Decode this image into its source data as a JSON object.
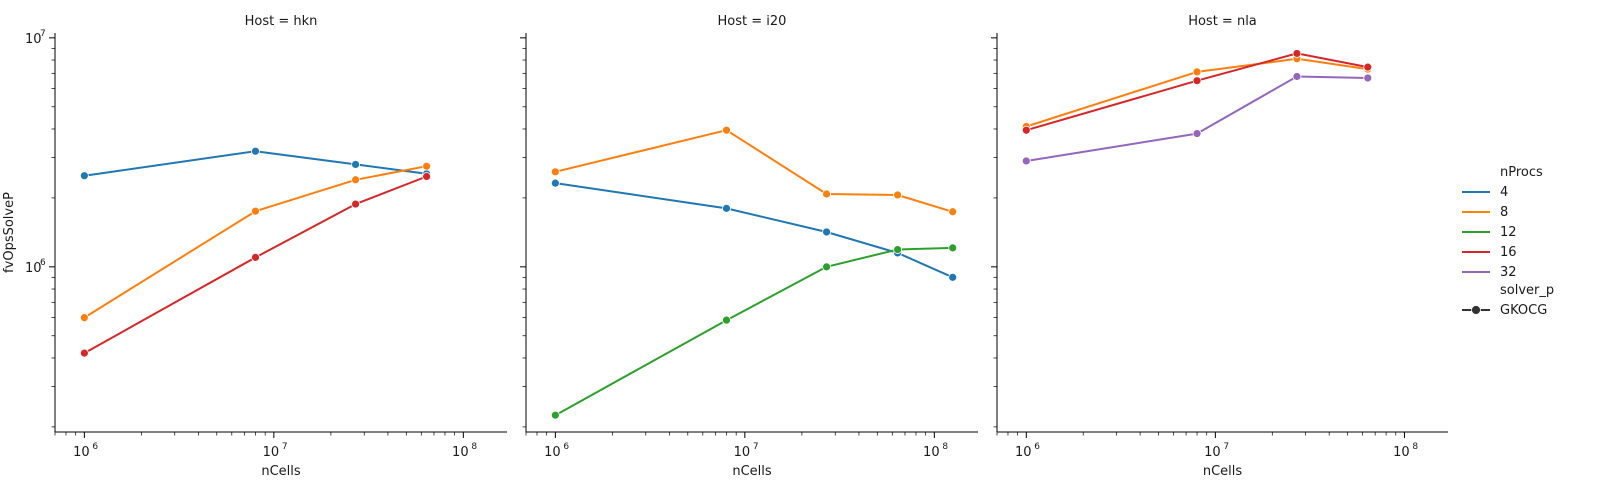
{
  "chart_data": {
    "type": "line",
    "x_scale": "log",
    "y_scale": "log",
    "xlabel": "nCells",
    "ylabel": "fvOpsSolveP",
    "xlim": [
      700000,
      170000000
    ],
    "ylim": [
      190000,
      10500000
    ],
    "x_ticks": [
      {
        "value": 1000000,
        "base": "10",
        "exp": "6"
      },
      {
        "value": 10000000,
        "base": "10",
        "exp": "7"
      },
      {
        "value": 100000000,
        "base": "10",
        "exp": "8"
      }
    ],
    "y_ticks": [
      {
        "value": 1000000,
        "base": "10",
        "exp": "6"
      },
      {
        "value": 10000000,
        "base": "10",
        "exp": "7"
      }
    ],
    "grid": false,
    "legend": {
      "position": "right",
      "hue_title": "nProcs",
      "style_title": "solver_p",
      "style_items": [
        "GKOCG"
      ],
      "entries": [
        {
          "label": "4",
          "color": "#1f77b4"
        },
        {
          "label": "8",
          "color": "#ff7f0e"
        },
        {
          "label": "12",
          "color": "#2ca02c"
        },
        {
          "label": "16",
          "color": "#d62728"
        },
        {
          "label": "32",
          "color": "#9467bd"
        }
      ]
    },
    "panels": [
      {
        "title": "Host = hkn",
        "series": [
          {
            "name": "4",
            "color": "#1f77b4",
            "points": [
              [
                1000000,
                2500000
              ],
              [
                8000000,
                3200000
              ],
              [
                27000000,
                2800000
              ],
              [
                64000000,
                2550000
              ]
            ]
          },
          {
            "name": "8",
            "color": "#ff7f0e",
            "points": [
              [
                1000000,
                600000
              ],
              [
                8000000,
                1750000
              ],
              [
                27000000,
                2400000
              ],
              [
                64000000,
                2750000
              ]
            ]
          },
          {
            "name": "16",
            "color": "#d62728",
            "points": [
              [
                1000000,
                420000
              ],
              [
                8000000,
                1100000
              ],
              [
                27000000,
                1880000
              ],
              [
                64000000,
                2480000
              ]
            ]
          }
        ]
      },
      {
        "title": "Host = i20",
        "series": [
          {
            "name": "4",
            "color": "#1f77b4",
            "points": [
              [
                1000000,
                2320000
              ],
              [
                8000000,
                1800000
              ],
              [
                27000000,
                1420000
              ],
              [
                64000000,
                1150000
              ],
              [
                125000000,
                900000
              ]
            ]
          },
          {
            "name": "8",
            "color": "#ff7f0e",
            "points": [
              [
                1000000,
                2600000
              ],
              [
                8000000,
                3950000
              ],
              [
                27000000,
                2080000
              ],
              [
                64000000,
                2060000
              ],
              [
                125000000,
                1740000
              ]
            ]
          },
          {
            "name": "12",
            "color": "#2ca02c",
            "points": [
              [
                1000000,
                225000
              ],
              [
                8000000,
                585000
              ],
              [
                27000000,
                1000000
              ],
              [
                64000000,
                1190000
              ],
              [
                125000000,
                1210000
              ]
            ]
          }
        ]
      },
      {
        "title": "Host = nla",
        "series": [
          {
            "name": "8",
            "color": "#ff7f0e",
            "points": [
              [
                1000000,
                4100000
              ],
              [
                8000000,
                7100000
              ],
              [
                27000000,
                8100000
              ],
              [
                64000000,
                7300000
              ]
            ]
          },
          {
            "name": "16",
            "color": "#d62728",
            "points": [
              [
                1000000,
                3950000
              ],
              [
                8000000,
                6500000
              ],
              [
                27000000,
                8550000
              ],
              [
                64000000,
                7450000
              ]
            ]
          },
          {
            "name": "32",
            "color": "#9467bd",
            "points": [
              [
                1000000,
                2900000
              ],
              [
                8000000,
                3820000
              ],
              [
                27000000,
                6780000
              ],
              [
                64000000,
                6680000
              ]
            ]
          }
        ]
      }
    ]
  }
}
